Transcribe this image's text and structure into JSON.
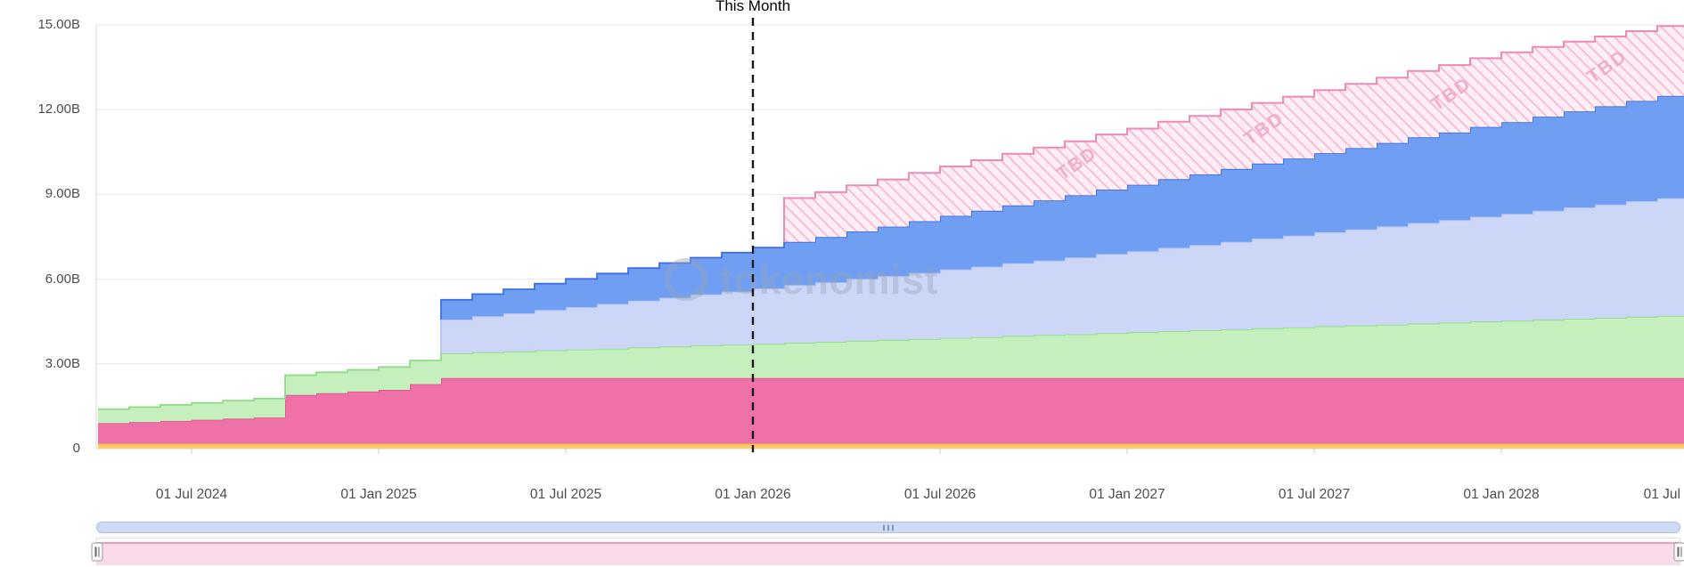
{
  "watermark": {
    "text": "tokenomist"
  },
  "chart_data": {
    "type": "area",
    "variant": "stacked-step-area-monthly",
    "unit": "B tokens",
    "annotation": {
      "label": "This Month",
      "month": "2026-01",
      "month_index": 21
    },
    "x_start": "2024-04",
    "x_end": "2028-07",
    "grid": true,
    "legend": "none",
    "grid_color": "#e8e8e8",
    "axis_line_color": "#d9d9d9",
    "tick_color": "#cccccc",
    "axis_label_color": "#4d4d4d",
    "annotation_line_color": "#1a1a1a",
    "y_axis": {
      "min": 0,
      "max": 15,
      "tick_step": 3,
      "ticks": [
        {
          "label": "0",
          "value": 0
        },
        {
          "label": "3.00B",
          "value": 3
        },
        {
          "label": "6.00B",
          "value": 6
        },
        {
          "label": "9.00B",
          "value": 9
        },
        {
          "label": "12.00B",
          "value": 12
        },
        {
          "label": "15.00B",
          "value": 15
        }
      ]
    },
    "x_axis": {
      "ticks": [
        {
          "label": "01 Jul 2024",
          "month_index": 3
        },
        {
          "label": "01 Jan 2025",
          "month_index": 9
        },
        {
          "label": "01 Jul 2025",
          "month_index": 15
        },
        {
          "label": "01 Jan 2026",
          "month_index": 21
        },
        {
          "label": "01 Jul 2026",
          "month_index": 27
        },
        {
          "label": "01 Jan 2027",
          "month_index": 33
        },
        {
          "label": "01 Jul 2027",
          "month_index": 39
        },
        {
          "label": "01 Jan 2028",
          "month_index": 45
        },
        {
          "label": "01 Jul",
          "month_index": 51
        }
      ]
    },
    "months": [
      "2024-04",
      "2024-05",
      "2024-06",
      "2024-07",
      "2024-08",
      "2024-09",
      "2024-10",
      "2024-11",
      "2024-12",
      "2025-01",
      "2025-02",
      "2025-03",
      "2025-04",
      "2025-05",
      "2025-06",
      "2025-07",
      "2025-08",
      "2025-09",
      "2025-10",
      "2025-11",
      "2025-12",
      "2026-01",
      "2026-02",
      "2026-03",
      "2026-04",
      "2026-05",
      "2026-06",
      "2026-07",
      "2026-08",
      "2026-09",
      "2026-10",
      "2026-11",
      "2026-12",
      "2027-01",
      "2027-02",
      "2027-03",
      "2027-04",
      "2027-05",
      "2027-06",
      "2027-07",
      "2027-08",
      "2027-09",
      "2027-10",
      "2027-11",
      "2027-12",
      "2028-01",
      "2028-02",
      "2028-03",
      "2028-04",
      "2028-05",
      "2028-06",
      "2028-07"
    ],
    "stacking": "values are per-series monthly amounts in billions, stacked bottom to top",
    "series": [
      {
        "name": "orange",
        "color": "#ffcb69",
        "line": "#f2a64e",
        "values": [
          0.18,
          0.18,
          0.18,
          0.18,
          0.18,
          0.18,
          0.18,
          0.18,
          0.18,
          0.18,
          0.18,
          0.18,
          0.18,
          0.18,
          0.18,
          0.18,
          0.18,
          0.18,
          0.18,
          0.18,
          0.18,
          0.18,
          0.18,
          0.18,
          0.18,
          0.18,
          0.18,
          0.18,
          0.18,
          0.18,
          0.18,
          0.18,
          0.18,
          0.18,
          0.18,
          0.18,
          0.18,
          0.18,
          0.18,
          0.18,
          0.18,
          0.18,
          0.18,
          0.18,
          0.18,
          0.18,
          0.18,
          0.18,
          0.18,
          0.18,
          0.18,
          0.18
        ]
      },
      {
        "name": "pink",
        "color": "#ee72a8",
        "line": "#e2548f",
        "values": [
          0.72,
          0.76,
          0.8,
          0.84,
          0.88,
          0.92,
          1.72,
          1.78,
          1.84,
          1.9,
          2.1,
          2.32,
          2.32,
          2.32,
          2.32,
          2.32,
          2.32,
          2.32,
          2.32,
          2.32,
          2.32,
          2.32,
          2.32,
          2.32,
          2.32,
          2.32,
          2.32,
          2.32,
          2.32,
          2.32,
          2.32,
          2.32,
          2.32,
          2.32,
          2.32,
          2.32,
          2.32,
          2.32,
          2.32,
          2.32,
          2.32,
          2.32,
          2.32,
          2.32,
          2.32,
          2.32,
          2.32,
          2.32,
          2.32,
          2.32,
          2.32,
          2.32
        ]
      },
      {
        "name": "green",
        "color": "#c6efbe",
        "line": "#8edb86",
        "values": [
          0.5,
          0.53,
          0.57,
          0.6,
          0.64,
          0.67,
          0.7,
          0.74,
          0.77,
          0.81,
          0.84,
          0.87,
          0.91,
          0.94,
          0.98,
          1.01,
          1.04,
          1.08,
          1.11,
          1.15,
          1.18,
          1.21,
          1.25,
          1.28,
          1.32,
          1.35,
          1.38,
          1.42,
          1.45,
          1.49,
          1.52,
          1.55,
          1.59,
          1.62,
          1.66,
          1.69,
          1.72,
          1.76,
          1.79,
          1.83,
          1.86,
          1.89,
          1.93,
          1.96,
          2.0,
          2.03,
          2.06,
          2.1,
          2.13,
          2.17,
          2.2,
          2.23
        ]
      },
      {
        "name": "lavender",
        "color": "#ccd7f8",
        "line": "#b3c3f2",
        "values": [
          0,
          0,
          0,
          0,
          0,
          0,
          0,
          0,
          0,
          0,
          0,
          1.2,
          1.28,
          1.35,
          1.43,
          1.5,
          1.58,
          1.66,
          1.73,
          1.81,
          1.88,
          1.96,
          2.04,
          2.11,
          2.19,
          2.26,
          2.34,
          2.42,
          2.49,
          2.57,
          2.64,
          2.72,
          2.8,
          2.87,
          2.95,
          3.02,
          3.1,
          3.18,
          3.25,
          3.33,
          3.4,
          3.48,
          3.56,
          3.63,
          3.71,
          3.78,
          3.86,
          3.94,
          4.01,
          4.09,
          4.16,
          4.24
        ]
      },
      {
        "name": "blue",
        "color": "#6f9ef2",
        "line": "#3d6fe0",
        "values": [
          0,
          0,
          0,
          0,
          0,
          0,
          0,
          0,
          0,
          0,
          0,
          0.7,
          0.78,
          0.85,
          0.93,
          1.0,
          1.08,
          1.15,
          1.23,
          1.3,
          1.38,
          1.45,
          1.53,
          1.6,
          1.68,
          1.75,
          1.83,
          1.9,
          1.98,
          2.05,
          2.13,
          2.2,
          2.28,
          2.35,
          2.43,
          2.5,
          2.58,
          2.65,
          2.73,
          2.8,
          2.88,
          2.95,
          3.03,
          3.1,
          3.18,
          3.25,
          3.33,
          3.4,
          3.48,
          3.55,
          3.63,
          3.7
        ]
      },
      {
        "name": "tbd",
        "label": "TBD",
        "hatched": true,
        "color": "#fdeef5",
        "hatch_color": "#f5b8d2",
        "line": "#ec8ab8",
        "label_color": "#eea9c9",
        "values": [
          0,
          0,
          0,
          0,
          0,
          0,
          0,
          0,
          0,
          0,
          0,
          0,
          0,
          0,
          0,
          0,
          0,
          0,
          0,
          0,
          0,
          0,
          1.55,
          1.59,
          1.63,
          1.67,
          1.71,
          1.75,
          1.79,
          1.83,
          1.87,
          1.91,
          1.95,
          1.99,
          2.03,
          2.07,
          2.11,
          2.15,
          2.19,
          2.23,
          2.27,
          2.31,
          2.35,
          2.39,
          2.43,
          2.47,
          2.47,
          2.47,
          2.47,
          2.47,
          2.47,
          2.47
        ]
      }
    ],
    "tbd_label_text": "TBD",
    "tbd_label_month_indices": [
      31,
      37,
      43,
      48
    ],
    "watermark_color": "#9aa3b8"
  },
  "navigator": {
    "scrollbar": {
      "track_color": "#cfdaf4",
      "border_color": "#aebedf",
      "grip_color": "#7f93c4"
    },
    "mini_chart": {
      "area_color": "#fbdbe9",
      "line_color": "#ef9ec2",
      "background": "#ffffff",
      "border_color": "#e4e4e4"
    },
    "handle": {
      "fill": "#fafafa",
      "border": "#999999",
      "grip": "#666666"
    }
  }
}
